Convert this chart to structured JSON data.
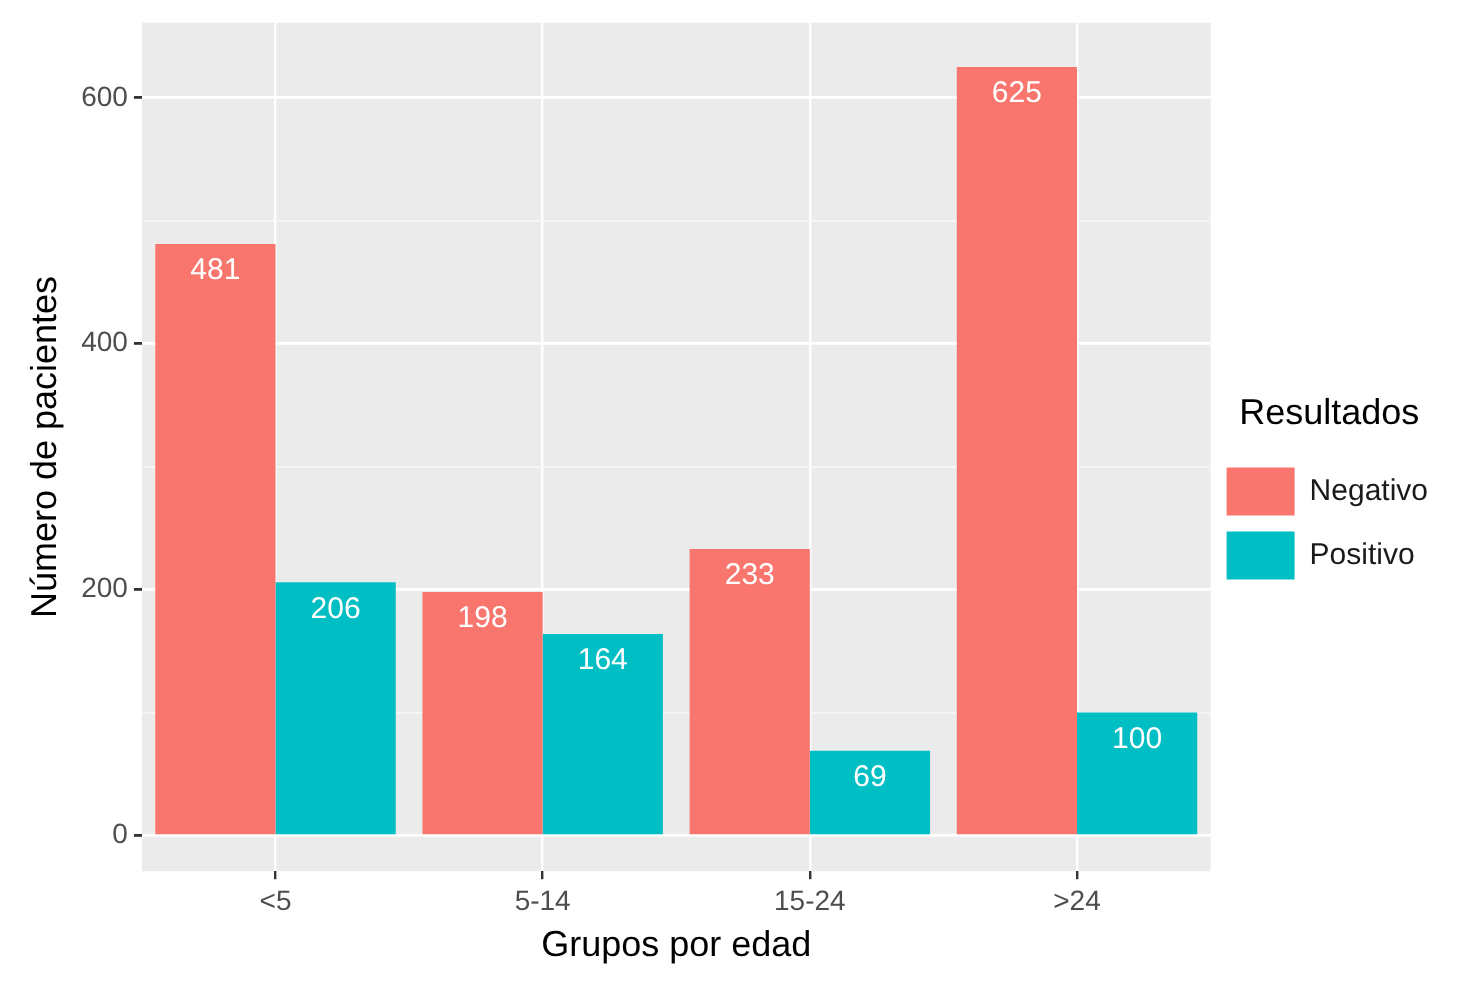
{
  "chart_data": {
    "type": "bar",
    "xlabel": "Grupos por edad",
    "ylabel": "Número de pacientes",
    "legend_title": "Resultados",
    "categories": [
      "<5",
      "5-14",
      "15-24",
      ">24"
    ],
    "series": [
      {
        "name": "Negativo",
        "color": "#f8766d",
        "values": [
          481,
          198,
          233,
          625
        ]
      },
      {
        "name": "Positivo",
        "color": "#00bfc4",
        "values": [
          206,
          164,
          69,
          100
        ]
      }
    ],
    "ylim": [
      -29,
      661
    ],
    "yticks": [
      0,
      {
        "value": 100,
        "label": null
      },
      200,
      {
        "value": 300,
        "label": null
      },
      400,
      {
        "value": 500,
        "label": null
      },
      600
    ],
    "grid": true,
    "legend": "right",
    "data_labels": true
  }
}
